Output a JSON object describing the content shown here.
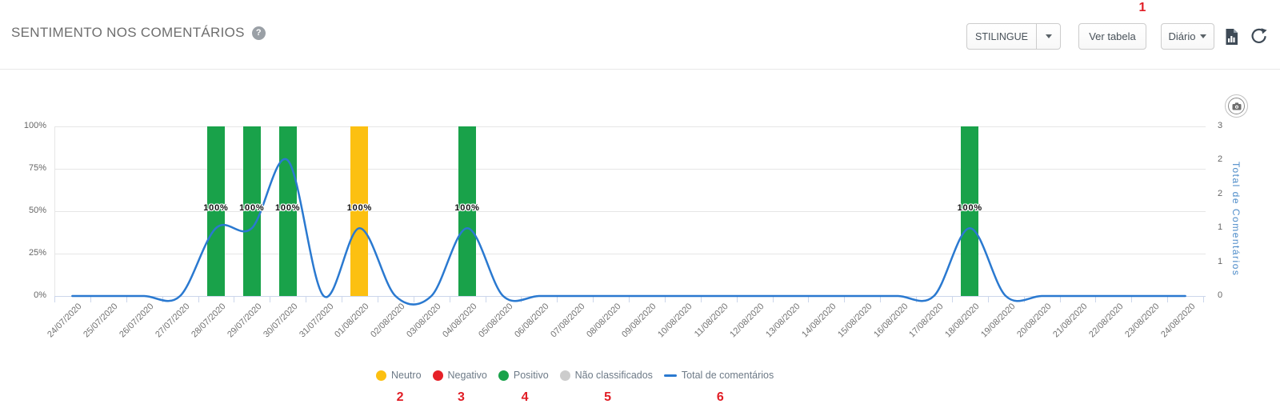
{
  "header": {
    "title": "SENTIMENTO NOS COMENTÁRIOS",
    "help_glyph": "?",
    "toolbar": {
      "source_label": "STILINGUE",
      "view_table_label": "Ver tabela",
      "period_label": "Diário"
    }
  },
  "annotations": {
    "color": "#e11d25",
    "toolbar_marker": "1",
    "legend_markers": [
      "2",
      "3",
      "4",
      "5",
      "6"
    ]
  },
  "chart_data": {
    "type": "combo-bar-line",
    "categories": [
      "24/07/2020",
      "25/07/2020",
      "26/07/2020",
      "27/07/2020",
      "28/07/2020",
      "29/07/2020",
      "30/07/2020",
      "31/07/2020",
      "01/08/2020",
      "02/08/2020",
      "03/08/2020",
      "04/08/2020",
      "05/08/2020",
      "06/08/2020",
      "07/08/2020",
      "08/08/2020",
      "09/08/2020",
      "10/08/2020",
      "11/08/2020",
      "12/08/2020",
      "13/08/2020",
      "14/08/2020",
      "15/08/2020",
      "16/08/2020",
      "17/08/2020",
      "18/08/2020",
      "19/08/2020",
      "20/08/2020",
      "21/08/2020",
      "22/08/2020",
      "23/08/2020",
      "24/08/2020"
    ],
    "series": [
      {
        "id": "neutro",
        "name": "Neutro",
        "type": "column",
        "color": "#fcc011",
        "unit": "%",
        "values": [
          0,
          0,
          0,
          0,
          0,
          0,
          0,
          0,
          100,
          0,
          0,
          0,
          0,
          0,
          0,
          0,
          0,
          0,
          0,
          0,
          0,
          0,
          0,
          0,
          0,
          0,
          0,
          0,
          0,
          0,
          0,
          0
        ]
      },
      {
        "id": "negativo",
        "name": "Negativo",
        "type": "column",
        "color": "#e62128",
        "unit": "%",
        "values": [
          0,
          0,
          0,
          0,
          0,
          0,
          0,
          0,
          0,
          0,
          0,
          0,
          0,
          0,
          0,
          0,
          0,
          0,
          0,
          0,
          0,
          0,
          0,
          0,
          0,
          0,
          0,
          0,
          0,
          0,
          0,
          0
        ]
      },
      {
        "id": "positivo",
        "name": "Positivo",
        "type": "column",
        "color": "#19a24a",
        "unit": "%",
        "values": [
          0,
          0,
          0,
          0,
          100,
          100,
          100,
          0,
          0,
          0,
          0,
          100,
          0,
          0,
          0,
          0,
          0,
          0,
          0,
          0,
          0,
          0,
          0,
          0,
          0,
          100,
          0,
          0,
          0,
          0,
          0,
          0
        ]
      },
      {
        "id": "nao-classificados",
        "name": "Não classificados",
        "type": "column",
        "color": "#cccccc",
        "unit": "%",
        "values": [
          0,
          0,
          0,
          0,
          0,
          0,
          0,
          0,
          0,
          0,
          0,
          0,
          0,
          0,
          0,
          0,
          0,
          0,
          0,
          0,
          0,
          0,
          0,
          0,
          0,
          0,
          0,
          0,
          0,
          0,
          0,
          0
        ]
      },
      {
        "id": "total-de-comentarios",
        "name": "Total de comentários",
        "type": "spline",
        "color": "#2a79d0",
        "values": [
          0,
          0,
          0,
          0,
          1,
          1,
          2,
          0,
          1,
          0,
          0,
          1,
          0,
          0,
          0,
          0,
          0,
          0,
          0,
          0,
          0,
          0,
          0,
          0,
          0,
          1,
          0,
          0,
          0,
          0,
          0,
          0
        ]
      }
    ],
    "bar_value_label": "100%",
    "left_axis": {
      "tick_labels": [
        "100%",
        "75%",
        "50%",
        "25%",
        "0%"
      ],
      "min": 0,
      "max": 100,
      "unit": "%"
    },
    "right_axis": {
      "tick_labels_top_to_bottom": [
        "3",
        "2",
        "2",
        "1",
        "1",
        "0"
      ],
      "title": "Total de Comentários",
      "min": 0,
      "max": 2.5
    },
    "grid": "horizontal",
    "legend_position": "bottom"
  },
  "legend": {
    "items": [
      {
        "id": "neutro",
        "label": "Neutro",
        "color": "#fcc011",
        "marker": "circle"
      },
      {
        "id": "negativo",
        "label": "Negativo",
        "color": "#e62128",
        "marker": "circle"
      },
      {
        "id": "positivo",
        "label": "Positivo",
        "color": "#19a24a",
        "marker": "circle"
      },
      {
        "id": "nao-classificados",
        "label": "Não classificados",
        "color": "#cccccc",
        "marker": "circle"
      },
      {
        "id": "total-de-comentarios",
        "label": "Total de comentários",
        "color": "#2a79d0",
        "marker": "line"
      }
    ]
  }
}
